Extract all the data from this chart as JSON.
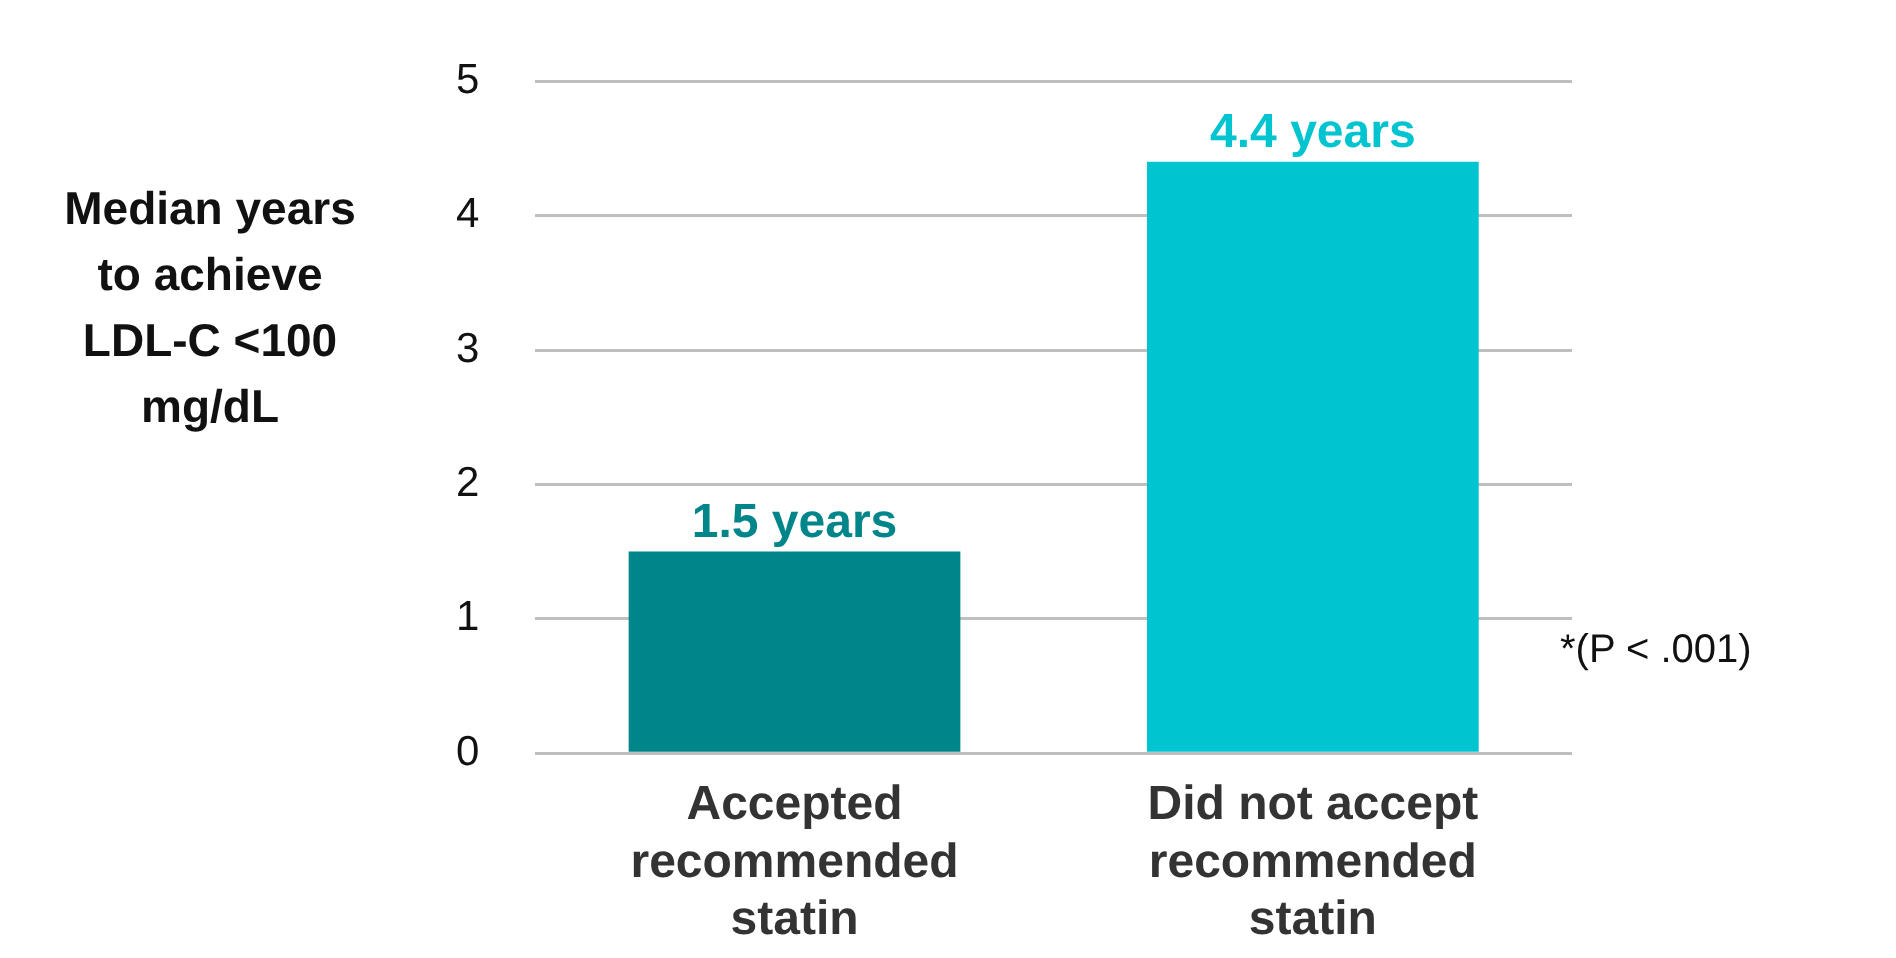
{
  "chart_data": {
    "type": "bar",
    "ylabel": "Median years to achieve LDL-C <100 mg/dL",
    "categories": [
      "Accepted recommended statin",
      "Did not accept recommended statin"
    ],
    "values": [
      1.5,
      4.4
    ],
    "colors": [
      "#00868a",
      "#00c4cf"
    ],
    "value_labels": [
      "1.5 years",
      "4.4 years"
    ],
    "ylim": [
      0,
      5
    ],
    "yticks": [
      0,
      1,
      2,
      3,
      4,
      5
    ],
    "grid": "y",
    "legend": false,
    "annotations": [
      "*(P < .001)"
    ]
  }
}
